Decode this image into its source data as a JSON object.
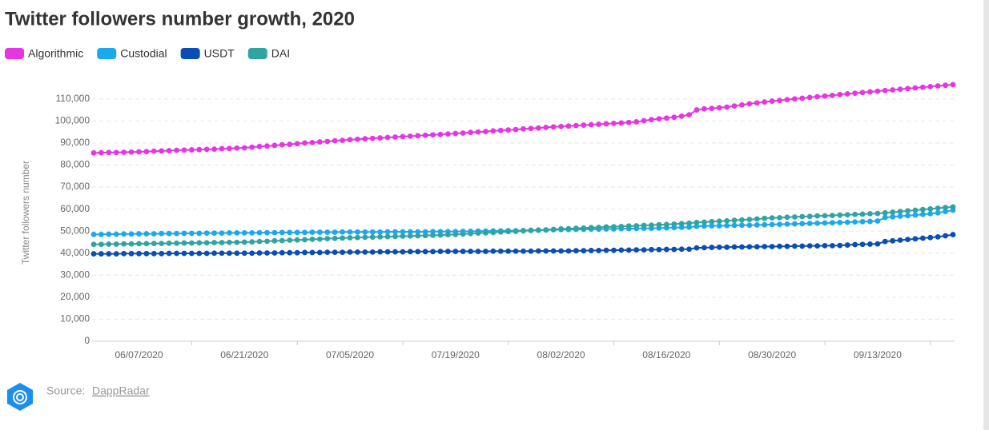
{
  "chart_data": {
    "type": "line",
    "title": "Twitter followers number growth, 2020",
    "y_label": "Twitter followers number",
    "source_label": "Source:",
    "source_name": "DappRadar",
    "legend": "top-left",
    "grid": true,
    "x": [
      "06/01/2020",
      "06/02/2020",
      "06/03/2020",
      "06/04/2020",
      "06/05/2020",
      "06/06/2020",
      "06/07/2020",
      "06/08/2020",
      "06/09/2020",
      "06/10/2020",
      "06/11/2020",
      "06/12/2020",
      "06/13/2020",
      "06/14/2020",
      "06/15/2020",
      "06/16/2020",
      "06/17/2020",
      "06/18/2020",
      "06/19/2020",
      "06/20/2020",
      "06/21/2020",
      "06/22/2020",
      "06/23/2020",
      "06/24/2020",
      "06/25/2020",
      "06/26/2020",
      "06/27/2020",
      "06/28/2020",
      "06/29/2020",
      "06/30/2020",
      "07/01/2020",
      "07/02/2020",
      "07/03/2020",
      "07/04/2020",
      "07/05/2020",
      "07/06/2020",
      "07/07/2020",
      "07/08/2020",
      "07/09/2020",
      "07/10/2020",
      "07/11/2020",
      "07/12/2020",
      "07/13/2020",
      "07/14/2020",
      "07/15/2020",
      "07/16/2020",
      "07/17/2020",
      "07/18/2020",
      "07/19/2020",
      "07/20/2020",
      "07/21/2020",
      "07/22/2020",
      "07/23/2020",
      "07/24/2020",
      "07/25/2020",
      "07/26/2020",
      "07/27/2020",
      "07/28/2020",
      "07/29/2020",
      "07/30/2020",
      "07/31/2020",
      "08/01/2020",
      "08/02/2020",
      "08/03/2020",
      "08/04/2020",
      "08/05/2020",
      "08/06/2020",
      "08/07/2020",
      "08/08/2020",
      "08/09/2020",
      "08/10/2020",
      "08/11/2020",
      "08/12/2020",
      "08/13/2020",
      "08/14/2020",
      "08/15/2020",
      "08/16/2020",
      "08/17/2020",
      "08/18/2020",
      "08/19/2020",
      "08/20/2020",
      "08/21/2020",
      "08/22/2020",
      "08/23/2020",
      "08/24/2020",
      "08/25/2020",
      "08/26/2020",
      "08/27/2020",
      "08/28/2020",
      "08/29/2020",
      "08/30/2020",
      "08/31/2020",
      "09/01/2020",
      "09/02/2020",
      "09/03/2020",
      "09/04/2020",
      "09/05/2020",
      "09/06/2020",
      "09/07/2020",
      "09/08/2020",
      "09/09/2020",
      "09/10/2020",
      "09/11/2020",
      "09/12/2020",
      "09/13/2020",
      "09/14/2020",
      "09/15/2020",
      "09/16/2020",
      "09/17/2020",
      "09/18/2020",
      "09/19/2020",
      "09/20/2020",
      "09/21/2020",
      "09/22/2020",
      "09/23/2020"
    ],
    "xticks": [
      "06/07/2020",
      "06/21/2020",
      "07/05/2020",
      "07/19/2020",
      "08/02/2020",
      "08/16/2020",
      "08/30/2020",
      "09/13/2020"
    ],
    "ylim": [
      0,
      115000
    ],
    "yticks": [
      0,
      {
        "value": 10000,
        "label": "10,000"
      },
      {
        "value": 20000,
        "label": "20,000"
      },
      {
        "value": 30000,
        "label": "30,000"
      },
      {
        "value": 40000,
        "label": "40,000"
      },
      {
        "value": 50000,
        "label": "50,000"
      },
      {
        "value": 60000,
        "label": "60,000"
      },
      {
        "value": 70000,
        "label": "70,000"
      },
      {
        "value": 80000,
        "label": "80,000"
      },
      {
        "value": 90000,
        "label": "90,000"
      },
      {
        "value": 100000,
        "label": "100,000"
      },
      {
        "value": 110000,
        "label": "110,000"
      }
    ],
    "series": [
      {
        "name": "Algorithmic",
        "color": "#e635e2",
        "values": [
          85500,
          85600,
          85700,
          85700,
          85800,
          85900,
          86000,
          86100,
          86300,
          86400,
          86500,
          86700,
          86800,
          86900,
          87000,
          87100,
          87200,
          87400,
          87500,
          87700,
          87800,
          88100,
          88400,
          88600,
          88900,
          89200,
          89400,
          89700,
          90000,
          90200,
          90500,
          90700,
          91000,
          91200,
          91500,
          91700,
          91900,
          92100,
          92300,
          92500,
          92700,
          92900,
          93100,
          93300,
          93500,
          93700,
          93900,
          94100,
          94300,
          94500,
          94800,
          95000,
          95200,
          95500,
          95700,
          95900,
          96100,
          96400,
          96600,
          96800,
          97100,
          97300,
          97500,
          97700,
          97900,
          98100,
          98300,
          98500,
          98700,
          98900,
          99100,
          99300,
          99600,
          100100,
          100600,
          101000,
          101300,
          101700,
          102200,
          102800,
          105000,
          105500,
          105700,
          106000,
          106300,
          106800,
          107300,
          107800,
          108200,
          108600,
          109000,
          109300,
          109700,
          110000,
          110300,
          110700,
          111000,
          111300,
          111600,
          112000,
          112300,
          112600,
          112900,
          113200,
          113500,
          113800,
          114100,
          114400,
          114700,
          115000,
          115300,
          115600,
          115900,
          116200,
          116500
        ]
      },
      {
        "name": "Custodial",
        "color": "#1ba8ee",
        "values": [
          48500,
          48500,
          48600,
          48600,
          48700,
          48700,
          48800,
          48800,
          48800,
          48900,
          48900,
          48900,
          49000,
          49000,
          49000,
          49100,
          49100,
          49100,
          49200,
          49200,
          49200,
          49200,
          49300,
          49300,
          49300,
          49400,
          49400,
          49400,
          49400,
          49500,
          49500,
          49500,
          49500,
          49600,
          49600,
          49600,
          49600,
          49600,
          49600,
          49700,
          49700,
          49700,
          49700,
          49700,
          49700,
          49800,
          49800,
          49800,
          49800,
          49900,
          49900,
          50000,
          50000,
          50100,
          50100,
          50200,
          50200,
          50300,
          50400,
          50500,
          50500,
          50600,
          50700,
          50700,
          50800,
          50800,
          50900,
          50900,
          51000,
          51000,
          51100,
          51100,
          51200,
          51300,
          51300,
          51400,
          51500,
          51600,
          51700,
          51800,
          52200,
          52300,
          52400,
          52400,
          52500,
          52600,
          52700,
          52700,
          52800,
          52900,
          53000,
          53100,
          53200,
          53300,
          53400,
          53500,
          53600,
          53700,
          53800,
          53900,
          54000,
          54200,
          54300,
          54400,
          54600,
          56200,
          56500,
          56800,
          57000,
          57300,
          57600,
          57900,
          58300,
          58900,
          59500
        ]
      },
      {
        "name": "USDT",
        "color": "#0a4db3",
        "values": [
          39700,
          39700,
          39700,
          39700,
          39800,
          39800,
          39800,
          39800,
          39800,
          39800,
          39900,
          39900,
          39900,
          39900,
          39900,
          39900,
          40000,
          40000,
          40000,
          40000,
          40000,
          40000,
          40100,
          40100,
          40100,
          40200,
          40200,
          40200,
          40300,
          40300,
          40300,
          40400,
          40400,
          40400,
          40500,
          40500,
          40500,
          40500,
          40600,
          40600,
          40600,
          40600,
          40700,
          40700,
          40700,
          40700,
          40800,
          40800,
          40800,
          40800,
          40800,
          40800,
          40800,
          40900,
          40900,
          40900,
          40900,
          40900,
          40900,
          41000,
          41000,
          41000,
          41000,
          41000,
          41100,
          41100,
          41200,
          41200,
          41300,
          41300,
          41400,
          41400,
          41500,
          41500,
          41600,
          41600,
          41700,
          41700,
          41800,
          41800,
          42400,
          42500,
          42600,
          42700,
          42700,
          42800,
          42800,
          42900,
          42900,
          43000,
          43000,
          43100,
          43100,
          43200,
          43200,
          43300,
          43300,
          43400,
          43400,
          43500,
          43700,
          43900,
          44000,
          44100,
          44200,
          45300,
          45600,
          45900,
          46200,
          46500,
          46800,
          47100,
          47400,
          47900,
          48400
        ]
      },
      {
        "name": "DAI",
        "color": "#30a3a3",
        "values": [
          44000,
          44000,
          44100,
          44100,
          44200,
          44200,
          44300,
          44300,
          44400,
          44400,
          44500,
          44500,
          44600,
          44600,
          44700,
          44700,
          44800,
          44800,
          44900,
          44900,
          45000,
          45100,
          45300,
          45400,
          45600,
          45700,
          45900,
          46000,
          46100,
          46300,
          46400,
          46600,
          46700,
          46900,
          47000,
          47100,
          47200,
          47300,
          47400,
          47500,
          47600,
          47700,
          47800,
          47900,
          48000,
          48100,
          48200,
          48400,
          48500,
          48700,
          48900,
          49100,
          49200,
          49400,
          49600,
          49800,
          49900,
          50100,
          50300,
          50400,
          50600,
          50800,
          51000,
          51100,
          51300,
          51400,
          51600,
          51700,
          51900,
          52000,
          52100,
          52300,
          52400,
          52600,
          52700,
          52900,
          53000,
          53200,
          53400,
          53600,
          53900,
          54100,
          54300,
          54500,
          54700,
          54900,
          55100,
          55300,
          55500,
          55800,
          56000,
          56100,
          56300,
          56400,
          56600,
          56700,
          56900,
          57000,
          57100,
          57300,
          57400,
          57600,
          57700,
          57900,
          58000,
          58300,
          58600,
          58900,
          59200,
          59500,
          59800,
          60100,
          60400,
          60700,
          61000
        ]
      }
    ]
  }
}
